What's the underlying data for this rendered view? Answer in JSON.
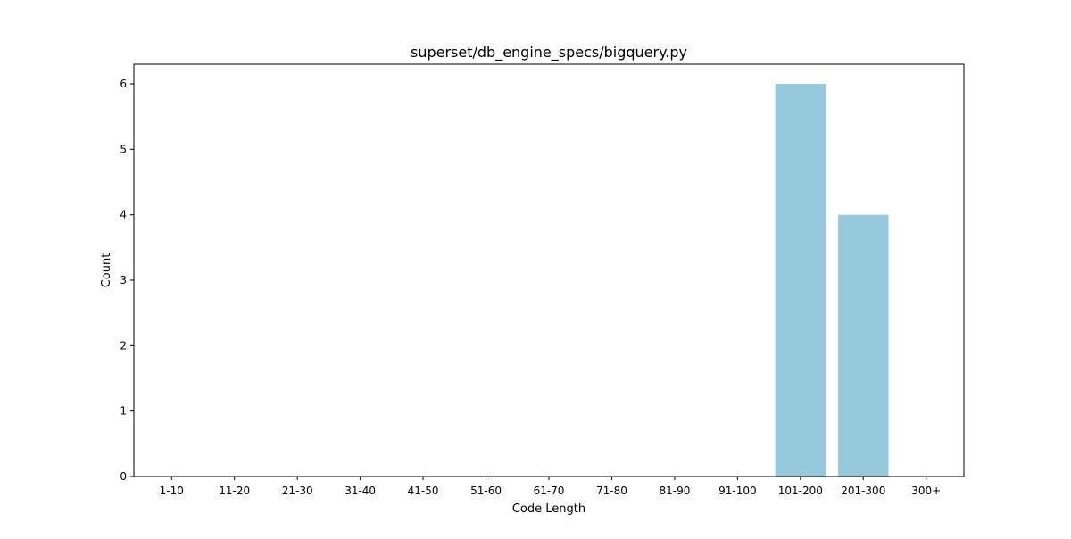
{
  "chart_data": {
    "type": "bar",
    "title": "superset/db_engine_specs/bigquery.py",
    "xlabel": "Code Length",
    "ylabel": "Count",
    "categories": [
      "1-10",
      "11-20",
      "21-30",
      "31-40",
      "41-50",
      "51-60",
      "61-70",
      "71-80",
      "81-90",
      "91-100",
      "101-200",
      "201-300",
      "300+"
    ],
    "values": [
      0,
      0,
      0,
      0,
      0,
      0,
      0,
      0,
      0,
      0,
      6,
      4,
      0
    ],
    "ylim": [
      0,
      6.3
    ],
    "yticks": [
      0,
      1,
      2,
      3,
      4,
      5,
      6
    ],
    "bar_color": "#96c9dc",
    "grid": false,
    "legend": false
  }
}
